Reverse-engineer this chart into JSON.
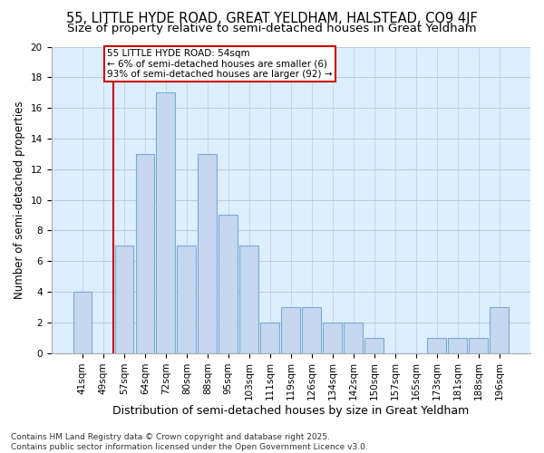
{
  "title1": "55, LITTLE HYDE ROAD, GREAT YELDHAM, HALSTEAD, CO9 4JF",
  "title2": "Size of property relative to semi-detached houses in Great Yeldham",
  "xlabel": "Distribution of semi-detached houses by size in Great Yeldham",
  "ylabel": "Number of semi-detached properties",
  "footnote": "Contains HM Land Registry data © Crown copyright and database right 2025.\nContains public sector information licensed under the Open Government Licence v3.0.",
  "bar_labels": [
    "41sqm",
    "49sqm",
    "57sqm",
    "64sqm",
    "72sqm",
    "80sqm",
    "88sqm",
    "95sqm",
    "103sqm",
    "111sqm",
    "119sqm",
    "126sqm",
    "134sqm",
    "142sqm",
    "150sqm",
    "157sqm",
    "165sqm",
    "173sqm",
    "181sqm",
    "188sqm",
    "196sqm"
  ],
  "bar_values": [
    4,
    0,
    7,
    13,
    17,
    7,
    13,
    9,
    7,
    2,
    3,
    3,
    2,
    2,
    1,
    0,
    0,
    1,
    1,
    1,
    3
  ],
  "bar_color": "#c5d8f0",
  "bar_edge_color": "#7aaad4",
  "property_line_label": "55 LITTLE HYDE ROAD: 54sqm",
  "annotation_line1": "← 6% of semi-detached houses are smaller (6)",
  "annotation_line2": "93% of semi-detached houses are larger (92) →",
  "annotation_box_color": "#ffffff",
  "annotation_box_edge": "#cc0000",
  "vline_color": "#cc0000",
  "vline_x_idx": 1.5,
  "ylim": [
    0,
    20
  ],
  "yticks": [
    0,
    2,
    4,
    6,
    8,
    10,
    12,
    14,
    16,
    18,
    20
  ],
  "grid_color": "#bbccdd",
  "background_color": "#ddeeff",
  "fig_background": "#ffffff",
  "title1_fontsize": 10.5,
  "title2_fontsize": 9.5,
  "xlabel_fontsize": 9,
  "ylabel_fontsize": 8.5,
  "tick_fontsize": 7.5,
  "footnote_fontsize": 6.5
}
